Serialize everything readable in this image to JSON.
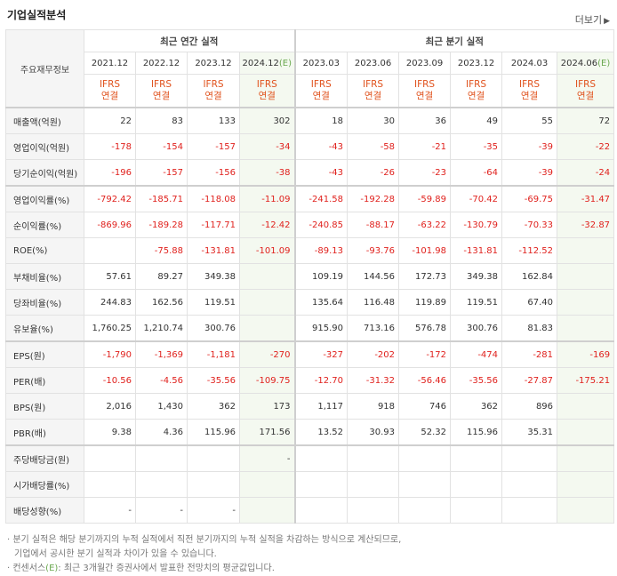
{
  "header": {
    "title": "기업실적분석",
    "more_label": "더보기",
    "more_icon": "chevron-right-icon"
  },
  "table": {
    "corner_label": "주요재무정보",
    "groups": {
      "annual": "최근 연간 실적",
      "quarterly": "최근 분기 실적"
    },
    "annual_periods": [
      "2021.12",
      "2022.12",
      "2023.12",
      "2024.12(E)"
    ],
    "quarter_periods": [
      "2023.03",
      "2023.06",
      "2023.09",
      "2023.12",
      "2024.03",
      "2024.06(E)"
    ],
    "ifrs_line1": "IFRS",
    "ifrs_line2": "연결",
    "rows": [
      {
        "label": "매출액(억원)",
        "values": [
          "22",
          "83",
          "133",
          "302",
          "18",
          "30",
          "36",
          "49",
          "55",
          "72"
        ]
      },
      {
        "label": "영업이익(억원)",
        "values": [
          "-178",
          "-154",
          "-157",
          "-34",
          "-43",
          "-58",
          "-21",
          "-35",
          "-39",
          "-22"
        ]
      },
      {
        "label": "당기순이익(억원)",
        "values": [
          "-196",
          "-157",
          "-156",
          "-38",
          "-43",
          "-26",
          "-23",
          "-64",
          "-39",
          "-24"
        ]
      },
      {
        "label": "영업이익률(%)",
        "values": [
          "-792.42",
          "-185.71",
          "-118.08",
          "-11.09",
          "-241.58",
          "-192.28",
          "-59.89",
          "-70.42",
          "-69.75",
          "-31.47"
        ]
      },
      {
        "label": "순이익률(%)",
        "values": [
          "-869.96",
          "-189.28",
          "-117.71",
          "-12.42",
          "-240.85",
          "-88.17",
          "-63.22",
          "-130.79",
          "-70.33",
          "-32.87"
        ]
      },
      {
        "label": "ROE(%)",
        "values": [
          "",
          "-75.88",
          "-131.81",
          "-101.09",
          "-89.13",
          "-93.76",
          "-101.98",
          "-131.81",
          "-112.52",
          ""
        ]
      },
      {
        "label": "부채비율(%)",
        "values": [
          "57.61",
          "89.27",
          "349.38",
          "",
          "109.19",
          "144.56",
          "172.73",
          "349.38",
          "162.84",
          ""
        ]
      },
      {
        "label": "당좌비율(%)",
        "values": [
          "244.83",
          "162.56",
          "119.51",
          "",
          "135.64",
          "116.48",
          "119.89",
          "119.51",
          "67.40",
          ""
        ]
      },
      {
        "label": "유보율(%)",
        "values": [
          "1,760.25",
          "1,210.74",
          "300.76",
          "",
          "915.90",
          "713.16",
          "576.78",
          "300.76",
          "81.83",
          ""
        ]
      },
      {
        "label": "EPS(원)",
        "values": [
          "-1,790",
          "-1,369",
          "-1,181",
          "-270",
          "-327",
          "-202",
          "-172",
          "-474",
          "-281",
          "-169"
        ]
      },
      {
        "label": "PER(배)",
        "values": [
          "-10.56",
          "-4.56",
          "-35.56",
          "-109.75",
          "-12.70",
          "-31.32",
          "-56.46",
          "-35.56",
          "-27.87",
          "-175.21"
        ]
      },
      {
        "label": "BPS(원)",
        "values": [
          "2,016",
          "1,430",
          "362",
          "173",
          "1,117",
          "918",
          "746",
          "362",
          "896",
          ""
        ]
      },
      {
        "label": "PBR(배)",
        "values": [
          "9.38",
          "4.36",
          "115.96",
          "171.56",
          "13.52",
          "30.93",
          "52.32",
          "115.96",
          "35.31",
          ""
        ]
      },
      {
        "label": "주당배당금(원)",
        "values": [
          "",
          "",
          "",
          "-",
          "",
          "",
          "",
          "",
          "",
          ""
        ]
      },
      {
        "label": "시가배당률(%)",
        "values": [
          "",
          "",
          "",
          "",
          "",
          "",
          "",
          "",
          "",
          ""
        ]
      },
      {
        "label": "배당성향(%)",
        "values": [
          "-",
          "-",
          "-",
          "",
          "",
          "",
          "",
          "",
          "",
          ""
        ]
      }
    ]
  },
  "notes": {
    "note1_line1": "· 분기 실적은 해당 분기까지의 누적 실적에서 직전 분기까지의 누적 실적을 차감하는 방식으로 계산되므로,",
    "note1_line2": "기업에서 공시한 분기 실적과 차이가 있을 수 있습니다.",
    "note2_prefix": "· 컨센서스",
    "note2_mark": "(E)",
    "note2_suffix": ": 최근 3개월간 증권사에서 발표한 전망치의 평균값입니다."
  },
  "colors": {
    "negative": "#e0211d",
    "ifrs": "#e0521d",
    "estimate_bg": "#f4f9f0",
    "estimate_mark": "#6aa84f"
  }
}
